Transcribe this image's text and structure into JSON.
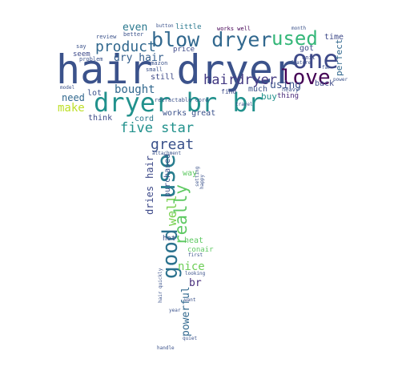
{
  "words": [
    {
      "text": "hair dryer",
      "color": "#3b528b"
    },
    {
      "text": "dryer br br",
      "color": "#21918c"
    },
    {
      "text": "blow dryer",
      "color": "#31688e"
    },
    {
      "text": "used",
      "color": "#35b779"
    },
    {
      "text": "one",
      "color": "#3e4a89"
    },
    {
      "text": "love",
      "color": "#440154"
    },
    {
      "text": "hairdryer",
      "color": "#443a83"
    },
    {
      "text": "product",
      "color": "#31688e"
    },
    {
      "text": "five star",
      "color": "#21918c"
    },
    {
      "text": "use",
      "color": "#287d8e"
    },
    {
      "text": "good",
      "color": "#2c728e"
    },
    {
      "text": "really",
      "color": "#5ec962"
    },
    {
      "text": "great",
      "color": "#3b528b"
    },
    {
      "text": "well",
      "color": "#7ad151"
    },
    {
      "text": "dry hair",
      "color": "#355f8d"
    },
    {
      "text": "bought",
      "color": "#31688e"
    },
    {
      "text": "even",
      "color": "#2a788e"
    },
    {
      "text": "make",
      "color": "#bddf26"
    },
    {
      "text": "need",
      "color": "#31688e"
    },
    {
      "text": "using",
      "color": "#3b528b"
    },
    {
      "text": "nice",
      "color": "#6ece58"
    },
    {
      "text": "br",
      "color": "#472d7b"
    },
    {
      "text": "powerful",
      "color": "#31688e"
    },
    {
      "text": "dries",
      "color": "#3e4a89"
    },
    {
      "text": "hair",
      "color": "#3e4a89"
    },
    {
      "text": "cord",
      "color": "#2a788e"
    },
    {
      "text": "time",
      "color": "#3e4a89"
    },
    {
      "text": "perfect",
      "color": "#31688e"
    },
    {
      "text": "back",
      "color": "#3e4a89"
    },
    {
      "text": "buy",
      "color": "#21918c"
    },
    {
      "text": "thing",
      "color": "#482878"
    },
    {
      "text": "much",
      "color": "#3b528b"
    },
    {
      "text": "got",
      "color": "#3e4a89"
    },
    {
      "text": "still",
      "color": "#3e4a89"
    },
    {
      "text": "lot",
      "color": "#3b528b"
    },
    {
      "text": "seem",
      "color": "#3e4a89"
    },
    {
      "text": "think",
      "color": "#3e4a89"
    },
    {
      "text": "works great",
      "color": "#3b528b"
    },
    {
      "text": "purchased",
      "color": "#3b528b"
    },
    {
      "text": "way",
      "color": "#5ec962"
    },
    {
      "text": "heat",
      "color": "#5ec962"
    },
    {
      "text": "conair",
      "color": "#5ec962"
    },
    {
      "text": "hot",
      "color": "#3b528b"
    },
    {
      "text": "little",
      "color": "#2a788e"
    },
    {
      "text": "price",
      "color": "#3e4a89"
    },
    {
      "text": "find",
      "color": "#3e4a89"
    },
    {
      "text": "retractable cord",
      "color": "#3b528b"
    },
    {
      "text": "unit",
      "color": "#3e4a89"
    },
    {
      "text": "heavy",
      "color": "#3b528b"
    },
    {
      "text": "say",
      "color": "#3b528b"
    },
    {
      "text": "review",
      "color": "#3b528b"
    },
    {
      "text": "better",
      "color": "#3b528b"
    },
    {
      "text": "problem",
      "color": "#3b528b"
    },
    {
      "text": "amazon",
      "color": "#3b528b"
    },
    {
      "text": "small",
      "color": "#3b528b"
    },
    {
      "text": "works well",
      "color": "#440154"
    },
    {
      "text": "button",
      "color": "#3b528b"
    },
    {
      "text": "model",
      "color": "#3b528b"
    },
    {
      "text": "power",
      "color": "#3b528b"
    },
    {
      "text": "far",
      "color": "#3b528b"
    },
    {
      "text": "feature",
      "color": "#3b528b"
    },
    {
      "text": "month",
      "color": "#3b528b"
    },
    {
      "text": "first",
      "color": "#3b528b"
    },
    {
      "text": "looking",
      "color": "#3b528b"
    },
    {
      "text": "want",
      "color": "#3b528b"
    },
    {
      "text": "travel",
      "color": "#3b528b"
    },
    {
      "text": "setting",
      "color": "#3b528b"
    },
    {
      "text": "attachment",
      "color": "#3b528b"
    },
    {
      "text": "happy",
      "color": "#3b528b"
    },
    {
      "text": "hair quickly",
      "color": "#3b528b"
    },
    {
      "text": "quiet",
      "color": "#3b528b"
    },
    {
      "text": "handle",
      "color": "#3b528b"
    },
    {
      "text": "year",
      "color": "#3b528b"
    }
  ]
}
